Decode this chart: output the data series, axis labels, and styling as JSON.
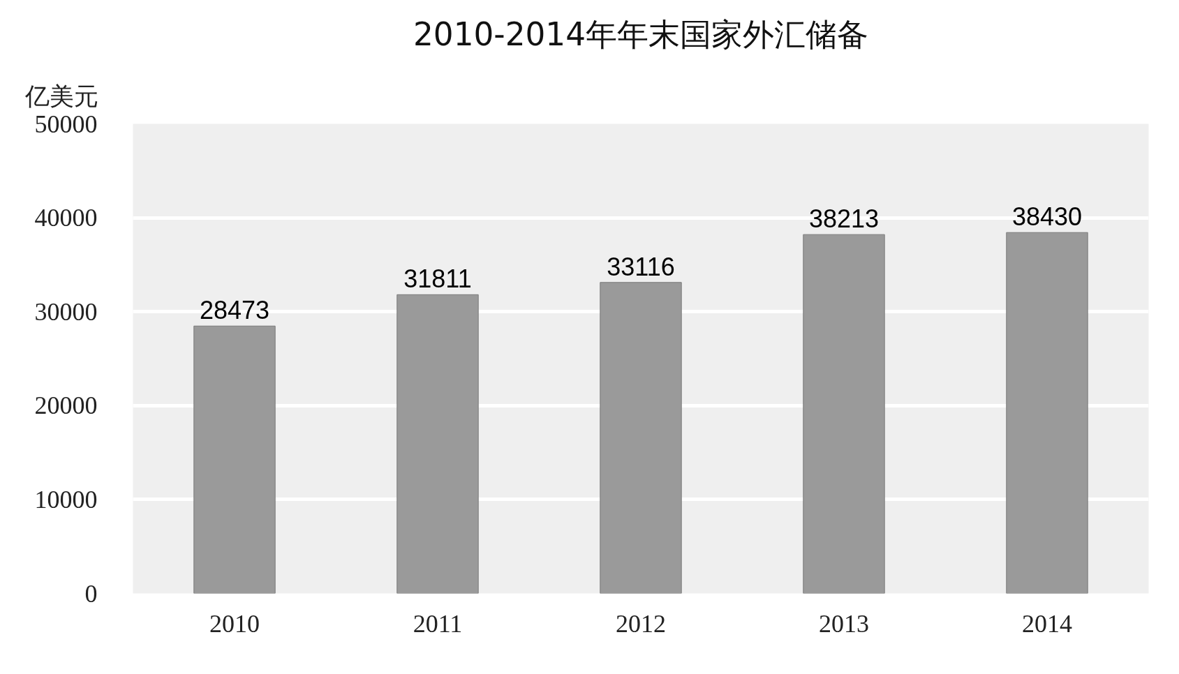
{
  "chart_data": {
    "type": "bar",
    "title": "2010-2014年年末国家外汇储备",
    "ylabel": "亿美元",
    "categories": [
      "2010",
      "2011",
      "2012",
      "2013",
      "2014"
    ],
    "values": [
      28473,
      31811,
      33116,
      38213,
      38430
    ],
    "color": "#9a9a9a",
    "ylim": [
      0,
      50000
    ],
    "yticks": [
      0,
      10000,
      20000,
      30000,
      40000,
      50000
    ],
    "grid": "y",
    "data_labels": true
  }
}
